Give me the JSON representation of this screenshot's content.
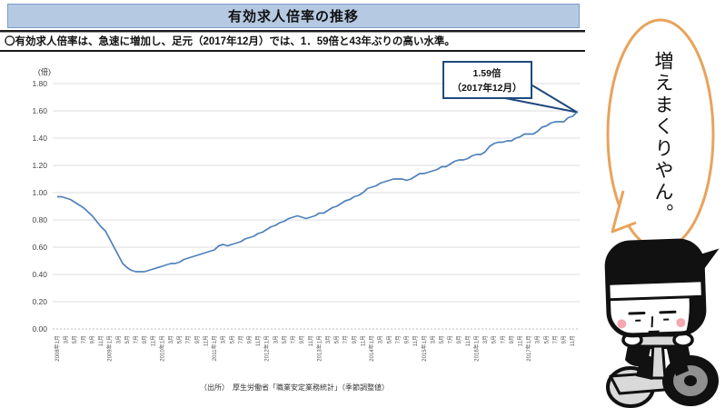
{
  "header": {
    "title": "有効求人倍率の推移"
  },
  "summary": {
    "text": "〇有効求人倍率は、急速に増加し、足元（2017年12月）では、1．59倍と43年ぶりの高い水準。"
  },
  "chart_data": {
    "type": "line",
    "title": "有効求人倍率の推移",
    "unit_label": "(倍)",
    "xlabel": "",
    "ylabel": "",
    "ylim": [
      0,
      1.8
    ],
    "ytick_step": 0.2,
    "grid": true,
    "yticks": [
      "1.80",
      "1.60",
      "1.40",
      "1.20",
      "1.00",
      "0.80",
      "0.60",
      "0.40",
      "0.20",
      "0.00"
    ],
    "x_tick_labels": [
      "2008年1月",
      "3月",
      "5月",
      "7月",
      "9月",
      "11月",
      "2009年1月",
      "3月",
      "5月",
      "7月",
      "9月",
      "11月",
      "2010年1月",
      "3月",
      "5月",
      "7月",
      "9月",
      "11月",
      "2011年1月",
      "3月",
      "5月",
      "7月",
      "9月",
      "11月",
      "2012年1月",
      "3月",
      "5月",
      "7月",
      "9月",
      "11月",
      "2013年1月",
      "3月",
      "5月",
      "7月",
      "9月",
      "11月",
      "2014年1月",
      "3月",
      "5月",
      "7月",
      "9月",
      "11月",
      "2015年1月",
      "3月",
      "5月",
      "7月",
      "9月",
      "11月",
      "2016年1月",
      "3月",
      "5月",
      "7月",
      "9月",
      "11月",
      "2017年1月",
      "3月",
      "5月",
      "7月",
      "9月",
      "11月"
    ],
    "series": [
      {
        "name": "有効求人倍率",
        "values": [
          0.97,
          0.97,
          0.96,
          0.95,
          0.93,
          0.91,
          0.89,
          0.86,
          0.83,
          0.79,
          0.75,
          0.72,
          0.66,
          0.6,
          0.54,
          0.48,
          0.45,
          0.43,
          0.42,
          0.42,
          0.42,
          0.43,
          0.44,
          0.45,
          0.46,
          0.47,
          0.48,
          0.48,
          0.49,
          0.51,
          0.52,
          0.53,
          0.54,
          0.55,
          0.56,
          0.57,
          0.58,
          0.61,
          0.62,
          0.61,
          0.62,
          0.63,
          0.64,
          0.66,
          0.67,
          0.68,
          0.7,
          0.71,
          0.73,
          0.75,
          0.76,
          0.78,
          0.79,
          0.81,
          0.82,
          0.83,
          0.82,
          0.81,
          0.82,
          0.83,
          0.85,
          0.85,
          0.87,
          0.89,
          0.9,
          0.92,
          0.94,
          0.95,
          0.97,
          0.98,
          1.0,
          1.03,
          1.04,
          1.05,
          1.07,
          1.08,
          1.09,
          1.1,
          1.1,
          1.1,
          1.09,
          1.1,
          1.12,
          1.14,
          1.14,
          1.15,
          1.16,
          1.17,
          1.19,
          1.19,
          1.21,
          1.23,
          1.24,
          1.24,
          1.25,
          1.27,
          1.28,
          1.28,
          1.3,
          1.34,
          1.36,
          1.37,
          1.37,
          1.38,
          1.38,
          1.4,
          1.41,
          1.43,
          1.43,
          1.43,
          1.45,
          1.48,
          1.49,
          1.51,
          1.52,
          1.52,
          1.52,
          1.55,
          1.56,
          1.59
        ]
      }
    ],
    "series_color": "#4F81BD",
    "gridline_color": "#dcdcdc",
    "annotation": {
      "line1": "1.59倍",
      "line2": "（2017年12月）",
      "border_color": "#1F497D"
    }
  },
  "source": {
    "text": "（出所）　厚生労働省「職業安定業務統計」（季節調整値）"
  },
  "speech_bubble": {
    "text": "増えまくりやん。",
    "outline_color": "#E8A35C"
  }
}
